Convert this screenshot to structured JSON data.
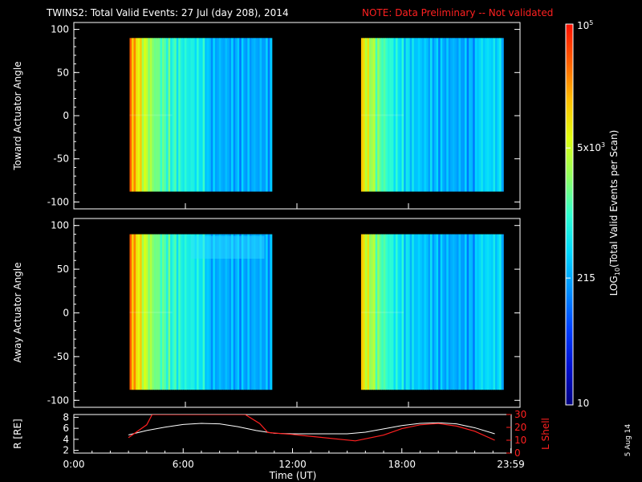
{
  "title": "TWINS2: Total Valid Events: 27 Jul (day 208), 2014",
  "note": "NOTE: Data Preliminary -- Not validated",
  "side_date": "5 Aug 14",
  "colors": {
    "background": "#000000",
    "axis": "#ffffff",
    "note": "#ff2020",
    "r_line": "#ffffff",
    "l_line": "#ff2020"
  },
  "chart_data": [
    {
      "type": "heatmap",
      "ylabel": "Toward Actuator Angle",
      "x_range_hours": [
        0,
        24
      ],
      "y_range": [
        -108,
        108
      ],
      "y_ticks": [
        "100",
        "50",
        "0",
        "-50",
        "-100"
      ],
      "y_tick_values": [
        100,
        50,
        0,
        -50,
        -100
      ],
      "blocks": [
        {
          "start_h": 3.0,
          "end_h": 10.65,
          "y_min": -88,
          "y_max": 90
        },
        {
          "start_h": 15.45,
          "end_h": 23.1,
          "y_min": -88,
          "y_max": 90
        }
      ]
    },
    {
      "type": "heatmap",
      "ylabel": "Away Actuator Angle",
      "x_range_hours": [
        0,
        24
      ],
      "y_range": [
        -108,
        108
      ],
      "y_ticks": [
        "100",
        "50",
        "0",
        "-50",
        "-100"
      ],
      "y_tick_values": [
        100,
        50,
        0,
        -50,
        -100
      ],
      "blocks": [
        {
          "start_h": 3.0,
          "end_h": 10.65,
          "y_min": -88,
          "y_max": 90
        },
        {
          "start_h": 15.45,
          "end_h": 23.1,
          "y_min": -88,
          "y_max": 90
        }
      ]
    },
    {
      "type": "line",
      "ylabel": "R [RE]",
      "y2label": "L Shell",
      "xlabel": "Time (UT)",
      "x_ticks": [
        "0:00",
        "6:00",
        "12:00",
        "18:00",
        "23:59"
      ],
      "x_tick_values": [
        0,
        6,
        12,
        18,
        23.98
      ],
      "y_range": [
        1.5,
        8.5
      ],
      "y_ticks": [
        "8",
        "6",
        "4",
        "2"
      ],
      "y_tick_values": [
        8,
        6,
        4,
        2
      ],
      "y2_range": [
        0,
        30
      ],
      "y2_ticks": [
        "30",
        "20",
        "10",
        "0"
      ],
      "y2_tick_values": [
        30,
        20,
        10,
        0
      ],
      "series": [
        {
          "name": "R",
          "x": [
            3,
            4,
            5,
            6,
            7,
            8,
            9,
            10,
            11,
            12,
            13,
            14,
            15,
            16,
            17,
            18,
            19,
            20,
            21,
            22,
            23.1
          ],
          "values": [
            4.8,
            5.6,
            6.2,
            6.7,
            6.9,
            6.8,
            6.3,
            5.6,
            5.1,
            5.0,
            5.0,
            5.0,
            5.0,
            5.3,
            5.9,
            6.5,
            6.9,
            7.0,
            6.8,
            6.1,
            5.0
          ]
        },
        {
          "name": "L Shell",
          "x": [
            3,
            4,
            4.3,
            9.4,
            10.2,
            10.65,
            12,
            15.45,
            17,
            18,
            19,
            20,
            21,
            22,
            23.1
          ],
          "values": [
            12,
            22,
            30,
            30,
            23,
            16,
            14.5,
            9.5,
            14,
            19,
            22,
            23,
            21,
            17,
            10
          ]
        }
      ]
    }
  ],
  "colorbar": {
    "label": "LOG10(Total Valid Events per Scan)",
    "label_parts": [
      "LOG",
      "10",
      "(Total Valid Events per Scan)"
    ],
    "scale": "log",
    "range": [
      10,
      100000
    ],
    "ticks": [
      {
        "value": 10,
        "base": "10",
        "exp": ""
      },
      {
        "value": 215,
        "base": "215",
        "exp": ""
      },
      {
        "value": 5000,
        "base": "5x10",
        "exp": "3"
      },
      {
        "value": 100000,
        "base": "10",
        "exp": "5"
      }
    ],
    "color_stops": [
      "#000080",
      "#0010d0",
      "#0040ff",
      "#0090ff",
      "#00d8ff",
      "#30ffd0",
      "#90ff60",
      "#e0ff10",
      "#ffc000",
      "#ff6000",
      "#ff1000"
    ]
  }
}
